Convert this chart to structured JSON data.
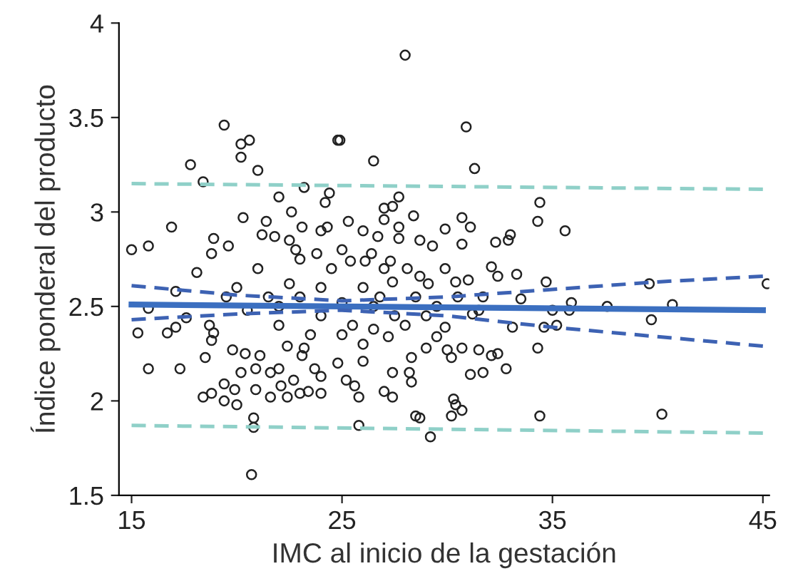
{
  "chart_data": {
    "type": "scatter",
    "xlabel": "IMC al inicio de la gestación",
    "ylabel": "Índice ponderal del producto",
    "xlim": [
      14.4,
      45.3
    ],
    "ylim": [
      1.5,
      4
    ],
    "xticks": [
      15,
      25,
      35,
      45
    ],
    "yticks": [
      1.5,
      2,
      2.5,
      3,
      3.5,
      4
    ],
    "grid": false,
    "legend": false,
    "series": [
      {
        "color": "#222222",
        "marker": "circle",
        "x": [
          19.4,
          20.2,
          20.6,
          20.2,
          17.8,
          18.4,
          21.0,
          16.9,
          15.0,
          15.8,
          20.3,
          21.4,
          18.9,
          19.6,
          18.8,
          23.2,
          24.4,
          24.2,
          22.0,
          22.6,
          23.1,
          24.3,
          21.8,
          21.2,
          22.8,
          23.8,
          24.8,
          28.0,
          24.9,
          30.9,
          26.5,
          31.3,
          27.7,
          27.0,
          27.4,
          28.4,
          27.0,
          27.7,
          29.9,
          30.7,
          31.1,
          26.7,
          27.7,
          28.7,
          29.3,
          30.7,
          32.3,
          32.9,
          33.0,
          34.4,
          34.3,
          26.4,
          25.4,
          26.1,
          27.3,
          18.1,
          17.1,
          15.8,
          15.3,
          16.7,
          17.1,
          17.6,
          18.7,
          18.9,
          18.8,
          18.5,
          15.8,
          17.3,
          18.4,
          18.8,
          19.4,
          20.0,
          19.4,
          19.9,
          20.2,
          20.9,
          21.6,
          20.8,
          20.8,
          20.7,
          20.9,
          21.6,
          22.1,
          22.4,
          23.0,
          23.4,
          24.0,
          19.8,
          20.4,
          21.1,
          22.4,
          23.1,
          23.7,
          22.0,
          22.7,
          24.0,
          29.9,
          32.1,
          32.4,
          33.3,
          34.7,
          27.4,
          28.1,
          28.7,
          29.1,
          30.4,
          31.0,
          31.7,
          33.5,
          31.2,
          31.5,
          33.1,
          34.6,
          34.3,
          30.7,
          31.5,
          32.1,
          32.4,
          32.8,
          31.1,
          31.7,
          30.2,
          30.0,
          30.3,
          30.4,
          30.2,
          30.7,
          28.5,
          28.7,
          29.2,
          25.8,
          34.4,
          28.3,
          28.2,
          28.3,
          27.0,
          27.4,
          27.4,
          25.6,
          25.8,
          25.2,
          26.0,
          29.5,
          29.9,
          26.5,
          27.2,
          29.0,
          35.6,
          39.6,
          45.2,
          35.9,
          35.8,
          35.0,
          35.2,
          37.6,
          40.7,
          39.7,
          40.2,
          22.0,
          23.0,
          24.0,
          25.0,
          26.0,
          25.5,
          24.5,
          23.5,
          22.5,
          21.5,
          20.5,
          26.5,
          27.5,
          28.5,
          29.5,
          28.0,
          27.0,
          26.0,
          24.0,
          23.0,
          25.0,
          21.0,
          20.0,
          22.0,
          25.0,
          26.8,
          29.0,
          30.5,
          19.5,
          24.8,
          23.2,
          25.3,
          24.0,
          26.0,
          22.5
        ],
        "values": [
          3.46,
          3.36,
          3.38,
          3.29,
          3.25,
          3.16,
          3.22,
          2.92,
          2.8,
          2.82,
          2.97,
          2.95,
          2.86,
          2.82,
          2.78,
          3.13,
          3.1,
          3.05,
          3.08,
          3.0,
          2.92,
          2.92,
          2.87,
          2.88,
          2.8,
          2.78,
          3.38,
          3.83,
          3.38,
          3.45,
          3.27,
          3.23,
          3.08,
          3.02,
          3.03,
          2.98,
          2.96,
          2.92,
          2.91,
          2.97,
          2.92,
          2.87,
          2.86,
          2.85,
          2.82,
          2.83,
          2.84,
          2.85,
          2.88,
          3.05,
          2.95,
          2.78,
          2.74,
          2.74,
          2.74,
          2.68,
          2.58,
          2.49,
          2.36,
          2.36,
          2.39,
          2.44,
          2.4,
          2.36,
          2.32,
          2.23,
          2.17,
          2.17,
          2.02,
          2.04,
          2.0,
          1.98,
          2.09,
          2.06,
          2.15,
          2.17,
          2.15,
          1.91,
          1.86,
          1.61,
          2.06,
          2.02,
          2.08,
          2.02,
          2.04,
          2.05,
          2.04,
          2.27,
          2.25,
          2.24,
          2.29,
          2.24,
          2.17,
          2.17,
          2.11,
          2.13,
          2.7,
          2.71,
          2.66,
          2.67,
          2.63,
          2.63,
          2.7,
          2.66,
          2.62,
          2.63,
          2.64,
          2.55,
          2.54,
          2.46,
          2.48,
          2.39,
          2.39,
          2.28,
          2.28,
          2.27,
          2.24,
          2.25,
          2.17,
          2.14,
          2.15,
          2.23,
          2.27,
          2.01,
          1.98,
          1.92,
          1.95,
          1.92,
          1.91,
          1.81,
          1.87,
          1.92,
          2.23,
          2.15,
          2.1,
          2.05,
          2.02,
          2.15,
          2.08,
          2.02,
          2.11,
          2.21,
          2.34,
          2.39,
          2.38,
          2.34,
          2.28,
          2.9,
          2.62,
          2.62,
          2.52,
          2.48,
          2.48,
          2.4,
          2.5,
          2.51,
          2.43,
          1.93,
          2.5,
          2.55,
          2.45,
          2.52,
          2.6,
          2.4,
          2.7,
          2.35,
          2.62,
          2.55,
          2.48,
          2.5,
          2.45,
          2.55,
          2.5,
          2.4,
          2.7,
          2.3,
          2.6,
          2.75,
          2.8,
          2.7,
          2.6,
          2.4,
          2.35,
          2.55,
          2.45,
          2.55,
          2.55,
          2.2,
          2.28,
          2.95,
          2.9,
          2.9,
          2.85
        ]
      },
      {
        "type": "line",
        "color": "#3b6fc0",
        "line_style": "solid",
        "x": [
          15,
          45
        ],
        "values": [
          2.51,
          2.48
        ]
      },
      {
        "type": "line",
        "color": "#3d62b3",
        "line_style": "dashed",
        "x": [
          15,
          20,
          25,
          30,
          35,
          40,
          45
        ],
        "values": [
          2.61,
          2.56,
          2.53,
          2.55,
          2.59,
          2.63,
          2.66
        ]
      },
      {
        "type": "line",
        "color": "#3d62b3",
        "line_style": "dashed",
        "x": [
          15,
          20,
          25,
          30,
          35,
          40,
          45
        ],
        "values": [
          2.43,
          2.46,
          2.48,
          2.45,
          2.39,
          2.34,
          2.29
        ]
      },
      {
        "type": "line",
        "color": "#8fd0c8",
        "line_style": "dashed",
        "x": [
          15,
          45
        ],
        "values": [
          3.15,
          3.12
        ]
      },
      {
        "type": "line",
        "color": "#8fd0c8",
        "line_style": "dashed",
        "x": [
          15,
          45
        ],
        "values": [
          1.87,
          1.83
        ]
      }
    ]
  }
}
